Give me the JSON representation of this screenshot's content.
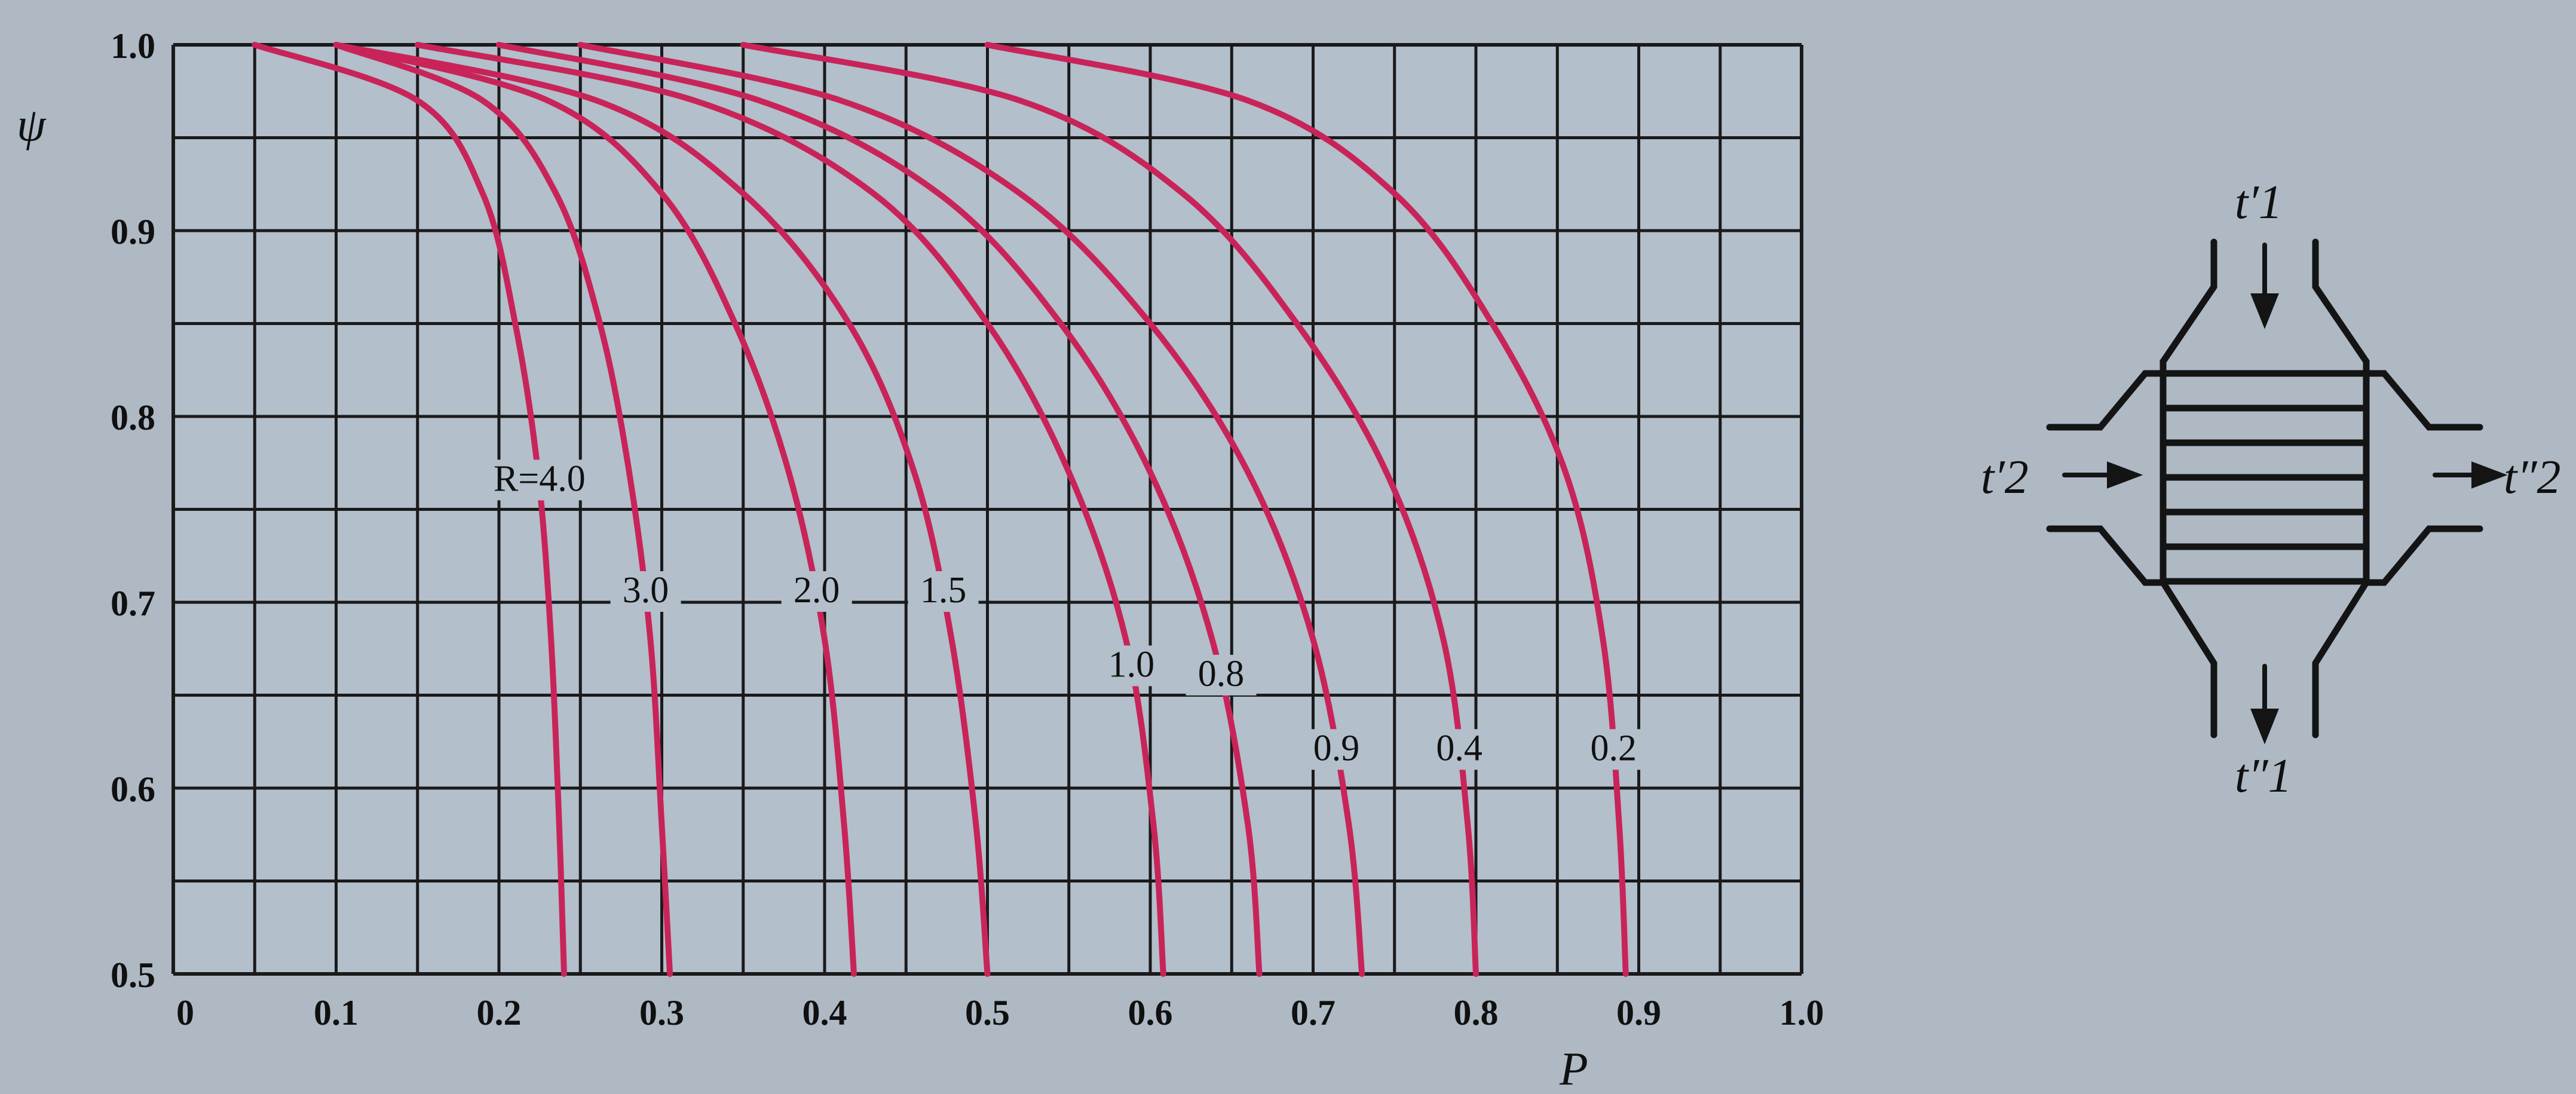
{
  "chart_data": {
    "type": "line",
    "xlabel": "P",
    "ylabel": "ψ",
    "xlim": [
      0,
      1.0
    ],
    "ylim": [
      0.5,
      1.0
    ],
    "x_ticks": [
      "0",
      "0.1",
      "0.2",
      "0.3",
      "0.4",
      "0.5",
      "0.6",
      "0.7",
      "0.8",
      "0.9",
      "1.0"
    ],
    "y_ticks": [
      "0.5",
      "0.6",
      "0.7",
      "0.8",
      "0.9",
      "1.0"
    ],
    "grid": true,
    "curve_color": "#c8245a",
    "series": [
      {
        "name": "R=4.0",
        "label": "R=4.0",
        "x": [
          0.05,
          0.15,
          0.19,
          0.21,
          0.224,
          0.232,
          0.237,
          0.24
        ],
        "y": [
          1.0,
          0.97,
          0.92,
          0.85,
          0.77,
          0.68,
          0.58,
          0.5
        ]
      },
      {
        "name": "3.0",
        "label": "3.0",
        "x": [
          0.1,
          0.19,
          0.235,
          0.262,
          0.28,
          0.293,
          0.3,
          0.305
        ],
        "y": [
          1.0,
          0.97,
          0.92,
          0.85,
          0.77,
          0.68,
          0.58,
          0.5
        ]
      },
      {
        "name": "2.0",
        "label": "2.0",
        "x": [
          0.1,
          0.23,
          0.3,
          0.345,
          0.378,
          0.4,
          0.412,
          0.418
        ],
        "y": [
          1.0,
          0.97,
          0.92,
          0.85,
          0.77,
          0.68,
          0.58,
          0.5
        ]
      },
      {
        "name": "1.5",
        "label": "1.5",
        "x": [
          0.1,
          0.26,
          0.35,
          0.415,
          0.455,
          0.478,
          0.493,
          0.5
        ],
        "y": [
          1.0,
          0.97,
          0.92,
          0.85,
          0.77,
          0.68,
          0.58,
          0.5
        ]
      },
      {
        "name": "1.0",
        "label": "1.0",
        "x": [
          0.15,
          0.32,
          0.43,
          0.5,
          0.55,
          0.585,
          0.602,
          0.608
        ],
        "y": [
          1.0,
          0.97,
          0.92,
          0.85,
          0.77,
          0.68,
          0.58,
          0.5
        ]
      },
      {
        "name": "0.8",
        "label": "0.8",
        "x": [
          0.2,
          0.36,
          0.47,
          0.545,
          0.6,
          0.638,
          0.66,
          0.667
        ],
        "y": [
          1.0,
          0.97,
          0.92,
          0.85,
          0.77,
          0.68,
          0.58,
          0.5
        ]
      },
      {
        "name": "0.9",
        "label": "0.9",
        "x": [
          0.25,
          0.41,
          0.52,
          0.6,
          0.66,
          0.7,
          0.722,
          0.73
        ],
        "y": [
          1.0,
          0.97,
          0.92,
          0.85,
          0.77,
          0.68,
          0.58,
          0.5
        ]
      },
      {
        "name": "0.4",
        "label": "0.4",
        "x": [
          0.35,
          0.52,
          0.62,
          0.69,
          0.745,
          0.78,
          0.795,
          0.8
        ],
        "y": [
          1.0,
          0.97,
          0.92,
          0.85,
          0.77,
          0.68,
          0.58,
          0.5
        ]
      },
      {
        "name": "0.2",
        "label": "0.2",
        "x": [
          0.5,
          0.66,
          0.75,
          0.81,
          0.855,
          0.878,
          0.888,
          0.892
        ],
        "y": [
          1.0,
          0.97,
          0.92,
          0.85,
          0.77,
          0.68,
          0.58,
          0.5
        ]
      }
    ]
  },
  "diagram": {
    "labels": {
      "t1_in": "t′1",
      "t1_out": "t″1",
      "t2_in": "t′2",
      "t2_out": "t″2"
    }
  }
}
